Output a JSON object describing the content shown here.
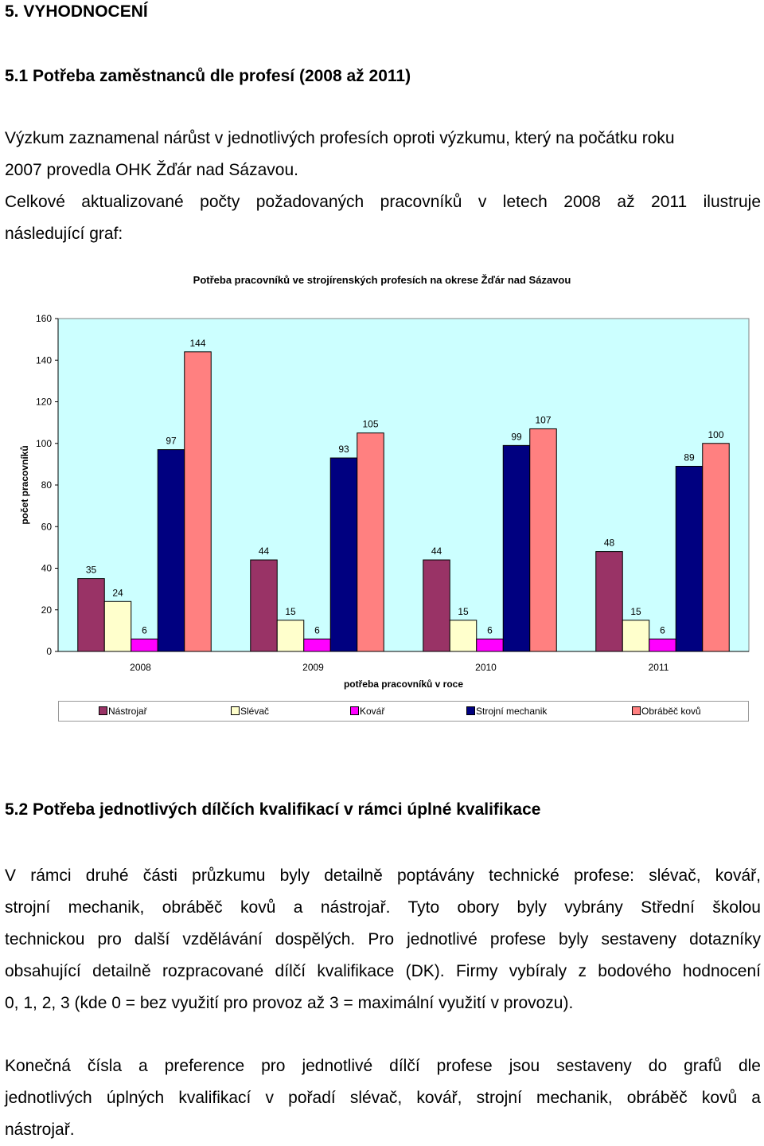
{
  "section": {
    "heading": "5. VYHODNOCENÍ"
  },
  "subsection1": {
    "heading": "5.1 Potřeba zaměstnanců dle profesí (2008 až 2011)",
    "para1_lines": [
      "Výzkum zaznamenal nárůst v jednotlivých profesích oproti výzkumu, který na počátku roku",
      "2007 provedla OHK Žďár nad Sázavou."
    ],
    "para2_lines": [
      "Celkové aktualizované počty požadovaných pracovníků v letech 2008 až 2011 ilustruje",
      "následující graf:"
    ]
  },
  "chart_data": {
    "type": "bar",
    "title": "Potřeba pracovníků ve strojírenských profesích na okrese Žďár nad Sázavou",
    "xlabel": "potřeba pracovníků v roce",
    "ylabel": "počet pracovníků",
    "ylim": [
      0,
      160
    ],
    "yticks": [
      0,
      20,
      40,
      60,
      80,
      100,
      120,
      140,
      160
    ],
    "categories": [
      "2008",
      "2009",
      "2010",
      "2011"
    ],
    "series": [
      {
        "name": "Nástrojař",
        "values": [
          35,
          44,
          44,
          48
        ],
        "color": "#993366"
      },
      {
        "name": "Slévač",
        "values": [
          24,
          15,
          15,
          15
        ],
        "color": "#FFFFCC"
      },
      {
        "name": "Kovář",
        "values": [
          6,
          6,
          6,
          6
        ],
        "color": "#FF00FF"
      },
      {
        "name": "Strojní mechanik",
        "values": [
          97,
          93,
          99,
          89
        ],
        "color": "#000080"
      },
      {
        "name": "Obráběč kovů",
        "values": [
          144,
          105,
          107,
          100
        ],
        "color": "#FF8080"
      }
    ],
    "plot_background": "#CCFFFF",
    "grid": false,
    "legend_position": "bottom"
  },
  "subsection2": {
    "heading": "5.2 Potřeba jednotlivých dílčích kvalifikací v rámci úplné kvalifikace",
    "para1_lines": [
      "V rámci druhé části průzkumu byly detailně poptávány technické profese: slévač, kovář,",
      "strojní mechanik, obráběč kovů a nástrojař. Tyto obory byly vybrány Střední školou",
      "technickou pro další vzdělávání dospělých. Pro jednotlivé profese byly sestaveny dotazníky",
      "obsahující detailně rozpracované dílčí kvalifikace (DK). Firmy vybíraly z bodového hodnocení",
      "0, 1, 2, 3 (kde 0 = bez využití pro provoz až 3 = maximální využití v provozu)."
    ],
    "para2_lines": [
      "Konečná čísla a preference pro jednotlivé dílčí profese jsou sestaveny do grafů dle",
      "jednotlivých úplných kvalifikací v pořadí slévač, kovář, strojní mechanik, obráběč kovů a",
      "nástrojař."
    ]
  }
}
